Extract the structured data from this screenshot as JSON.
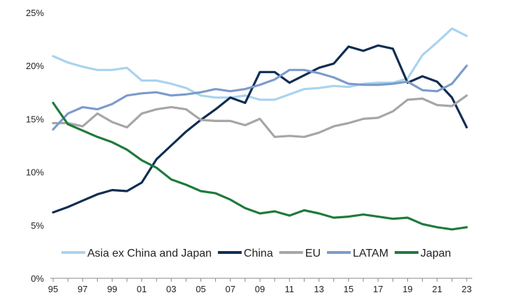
{
  "chart_data": {
    "type": "line",
    "title": "",
    "xlabel": "",
    "ylabel": "",
    "x": [
      1995,
      1996,
      1997,
      1998,
      1999,
      2000,
      2001,
      2002,
      2003,
      2004,
      2005,
      2006,
      2007,
      2008,
      2009,
      2010,
      2011,
      2012,
      2013,
      2014,
      2015,
      2016,
      2017,
      2018,
      2019,
      2020,
      2021,
      2022,
      2023
    ],
    "x_tick_values": [
      1995,
      1997,
      1999,
      2001,
      2003,
      2005,
      2007,
      2009,
      2011,
      2013,
      2015,
      2017,
      2019,
      2021,
      2023
    ],
    "x_tick_labels": [
      "95",
      "97",
      "99",
      "01",
      "03",
      "05",
      "07",
      "09",
      "11",
      "13",
      "15",
      "17",
      "19",
      "21",
      "23"
    ],
    "y_ticks": [
      0,
      5,
      10,
      15,
      20,
      25
    ],
    "y_tick_labels": [
      "0%",
      "5%",
      "10%",
      "15%",
      "20%",
      "25%"
    ],
    "ylim": [
      0,
      25
    ],
    "grid": false,
    "legend_position": "bottom",
    "series": [
      {
        "name": "Asia ex China and Japan",
        "color": "#a9d3ee",
        "values": [
          20.9,
          20.3,
          19.9,
          19.6,
          19.6,
          19.8,
          18.6,
          18.6,
          18.3,
          17.9,
          17.2,
          17.0,
          17.0,
          17.2,
          16.8,
          16.8,
          17.3,
          17.8,
          17.9,
          18.1,
          18.0,
          18.3,
          18.4,
          18.4,
          18.8,
          21.0,
          22.2,
          23.5,
          22.8
        ]
      },
      {
        "name": "China",
        "color": "#0f2d52",
        "values": [
          6.2,
          6.7,
          7.3,
          7.9,
          8.3,
          8.2,
          9.0,
          11.2,
          12.5,
          13.8,
          14.9,
          15.9,
          17.0,
          16.5,
          19.4,
          19.4,
          18.4,
          19.1,
          19.8,
          20.2,
          21.8,
          21.4,
          21.9,
          21.6,
          18.4,
          19.0,
          18.5,
          17.0,
          14.2
        ]
      },
      {
        "name": "EU",
        "color": "#a6a6a6",
        "values": [
          14.6,
          14.6,
          14.3,
          15.5,
          14.7,
          14.2,
          15.5,
          15.9,
          16.1,
          15.9,
          14.9,
          14.8,
          14.8,
          14.4,
          15.0,
          13.3,
          13.4,
          13.3,
          13.7,
          14.3,
          14.6,
          15.0,
          15.1,
          15.7,
          16.8,
          16.9,
          16.3,
          16.2,
          17.2
        ]
      },
      {
        "name": "LATAM",
        "color": "#7c9bcb",
        "values": [
          14.0,
          15.5,
          16.1,
          15.9,
          16.4,
          17.2,
          17.4,
          17.5,
          17.2,
          17.3,
          17.5,
          17.8,
          17.6,
          17.8,
          18.2,
          18.7,
          19.6,
          19.6,
          19.3,
          18.9,
          18.3,
          18.2,
          18.2,
          18.3,
          18.5,
          17.7,
          17.6,
          18.3,
          20.0
        ]
      },
      {
        "name": "Japan",
        "color": "#1f7a3c",
        "values": [
          16.5,
          14.5,
          13.9,
          13.3,
          12.8,
          12.1,
          11.1,
          10.4,
          9.3,
          8.8,
          8.2,
          8.0,
          7.4,
          6.6,
          6.1,
          6.3,
          5.9,
          6.4,
          6.1,
          5.7,
          5.8,
          6.0,
          5.8,
          5.6,
          5.7,
          5.1,
          4.8,
          4.6,
          4.8
        ]
      }
    ]
  }
}
